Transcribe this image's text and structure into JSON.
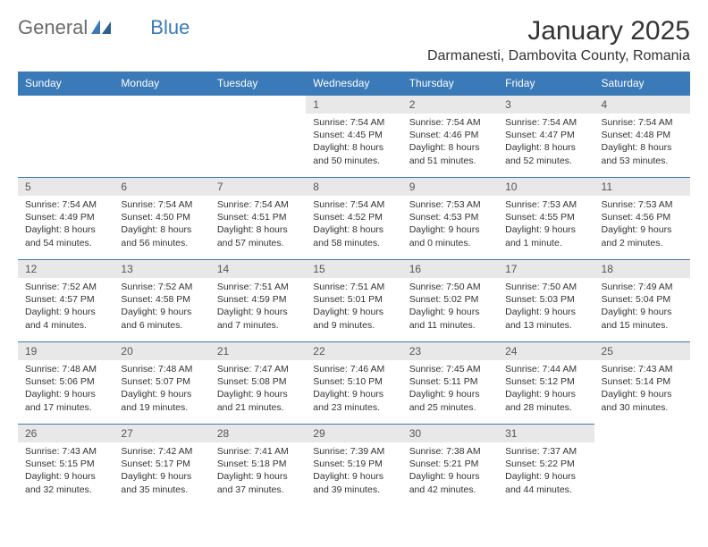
{
  "logo": {
    "word1": "General",
    "word2": "Blue"
  },
  "title": "January 2025",
  "location": "Darmanesti, Dambovita County, Romania",
  "colors": {
    "header_bg": "#3a7ab8",
    "header_text": "#ffffff",
    "daynum_bg": "#e8e8e8",
    "daynum_text": "#555555",
    "body_text": "#333333",
    "row_border": "#3a7ab8",
    "logo_gray": "#6b6b6b",
    "logo_blue": "#3a7ab8"
  },
  "weekdays": [
    "Sunday",
    "Monday",
    "Tuesday",
    "Wednesday",
    "Thursday",
    "Friday",
    "Saturday"
  ],
  "blanks_before": 3,
  "days": [
    {
      "n": "1",
      "sr": "7:54 AM",
      "ss": "4:45 PM",
      "dl": "8 hours and 50 minutes."
    },
    {
      "n": "2",
      "sr": "7:54 AM",
      "ss": "4:46 PM",
      "dl": "8 hours and 51 minutes."
    },
    {
      "n": "3",
      "sr": "7:54 AM",
      "ss": "4:47 PM",
      "dl": "8 hours and 52 minutes."
    },
    {
      "n": "4",
      "sr": "7:54 AM",
      "ss": "4:48 PM",
      "dl": "8 hours and 53 minutes."
    },
    {
      "n": "5",
      "sr": "7:54 AM",
      "ss": "4:49 PM",
      "dl": "8 hours and 54 minutes."
    },
    {
      "n": "6",
      "sr": "7:54 AM",
      "ss": "4:50 PM",
      "dl": "8 hours and 56 minutes."
    },
    {
      "n": "7",
      "sr": "7:54 AM",
      "ss": "4:51 PM",
      "dl": "8 hours and 57 minutes."
    },
    {
      "n": "8",
      "sr": "7:54 AM",
      "ss": "4:52 PM",
      "dl": "8 hours and 58 minutes."
    },
    {
      "n": "9",
      "sr": "7:53 AM",
      "ss": "4:53 PM",
      "dl": "9 hours and 0 minutes."
    },
    {
      "n": "10",
      "sr": "7:53 AM",
      "ss": "4:55 PM",
      "dl": "9 hours and 1 minute."
    },
    {
      "n": "11",
      "sr": "7:53 AM",
      "ss": "4:56 PM",
      "dl": "9 hours and 2 minutes."
    },
    {
      "n": "12",
      "sr": "7:52 AM",
      "ss": "4:57 PM",
      "dl": "9 hours and 4 minutes."
    },
    {
      "n": "13",
      "sr": "7:52 AM",
      "ss": "4:58 PM",
      "dl": "9 hours and 6 minutes."
    },
    {
      "n": "14",
      "sr": "7:51 AM",
      "ss": "4:59 PM",
      "dl": "9 hours and 7 minutes."
    },
    {
      "n": "15",
      "sr": "7:51 AM",
      "ss": "5:01 PM",
      "dl": "9 hours and 9 minutes."
    },
    {
      "n": "16",
      "sr": "7:50 AM",
      "ss": "5:02 PM",
      "dl": "9 hours and 11 minutes."
    },
    {
      "n": "17",
      "sr": "7:50 AM",
      "ss": "5:03 PM",
      "dl": "9 hours and 13 minutes."
    },
    {
      "n": "18",
      "sr": "7:49 AM",
      "ss": "5:04 PM",
      "dl": "9 hours and 15 minutes."
    },
    {
      "n": "19",
      "sr": "7:48 AM",
      "ss": "5:06 PM",
      "dl": "9 hours and 17 minutes."
    },
    {
      "n": "20",
      "sr": "7:48 AM",
      "ss": "5:07 PM",
      "dl": "9 hours and 19 minutes."
    },
    {
      "n": "21",
      "sr": "7:47 AM",
      "ss": "5:08 PM",
      "dl": "9 hours and 21 minutes."
    },
    {
      "n": "22",
      "sr": "7:46 AM",
      "ss": "5:10 PM",
      "dl": "9 hours and 23 minutes."
    },
    {
      "n": "23",
      "sr": "7:45 AM",
      "ss": "5:11 PM",
      "dl": "9 hours and 25 minutes."
    },
    {
      "n": "24",
      "sr": "7:44 AM",
      "ss": "5:12 PM",
      "dl": "9 hours and 28 minutes."
    },
    {
      "n": "25",
      "sr": "7:43 AM",
      "ss": "5:14 PM",
      "dl": "9 hours and 30 minutes."
    },
    {
      "n": "26",
      "sr": "7:43 AM",
      "ss": "5:15 PM",
      "dl": "9 hours and 32 minutes."
    },
    {
      "n": "27",
      "sr": "7:42 AM",
      "ss": "5:17 PM",
      "dl": "9 hours and 35 minutes."
    },
    {
      "n": "28",
      "sr": "7:41 AM",
      "ss": "5:18 PM",
      "dl": "9 hours and 37 minutes."
    },
    {
      "n": "29",
      "sr": "7:39 AM",
      "ss": "5:19 PM",
      "dl": "9 hours and 39 minutes."
    },
    {
      "n": "30",
      "sr": "7:38 AM",
      "ss": "5:21 PM",
      "dl": "9 hours and 42 minutes."
    },
    {
      "n": "31",
      "sr": "7:37 AM",
      "ss": "5:22 PM",
      "dl": "9 hours and 44 minutes."
    }
  ],
  "labels": {
    "sunrise": "Sunrise:",
    "sunset": "Sunset:",
    "daylight": "Daylight:"
  }
}
